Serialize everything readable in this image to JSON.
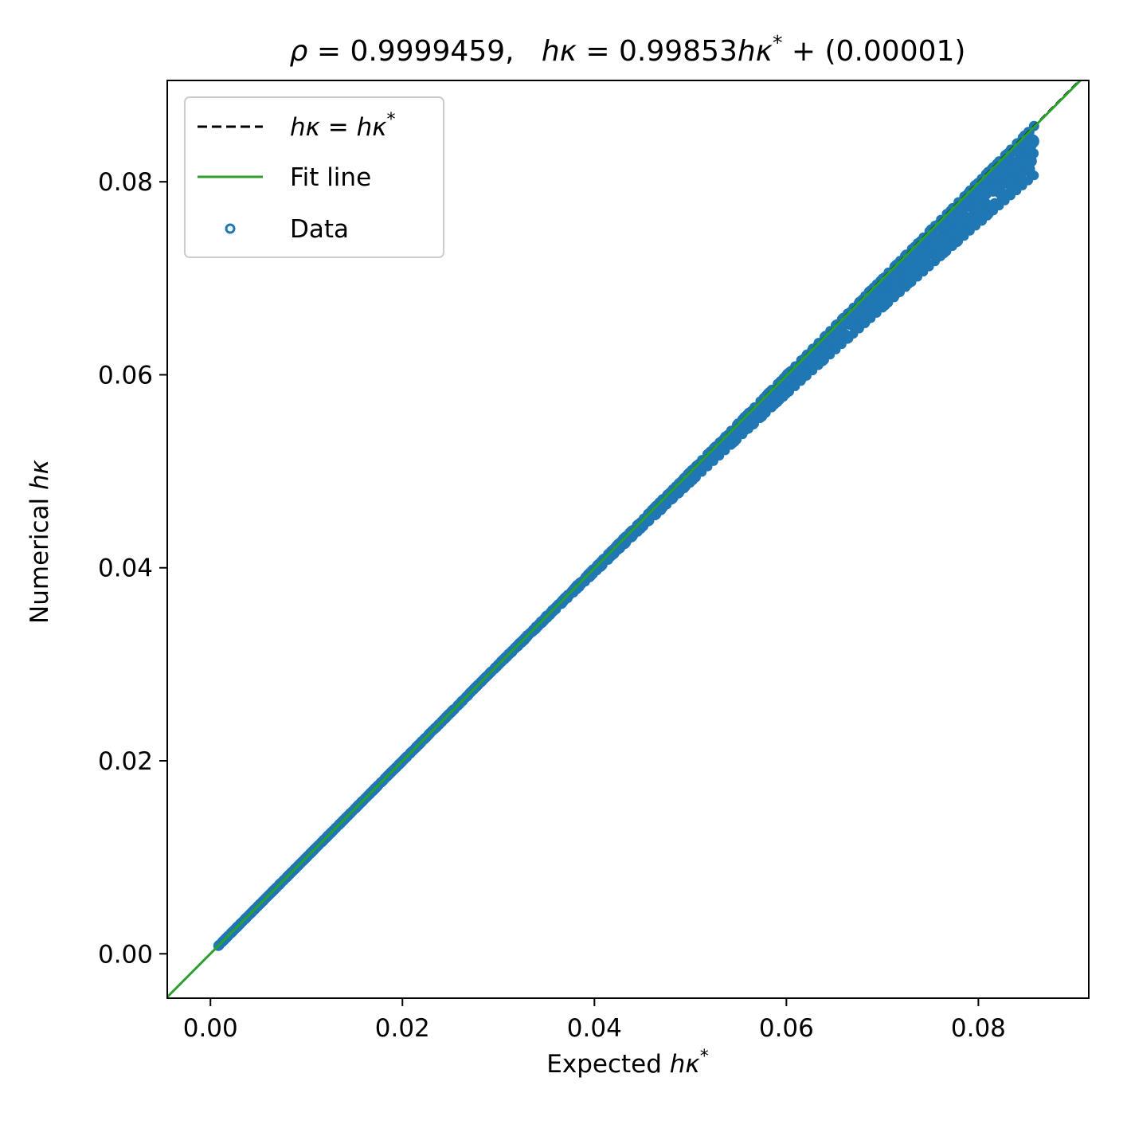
{
  "chart_data": {
    "type": "scatter",
    "title": {
      "rho_symbol": "ρ",
      "rho_text": " = 0.9999459,   ",
      "hk_symbol": "hκ",
      "eq_text": " = 0.99853",
      "hk_star_symbol": "hκ",
      "star": "*",
      "tail_text": " + (0.00001)"
    },
    "xlabel": {
      "text": "Expected ",
      "symbol": "hκ",
      "star": "*"
    },
    "ylabel": {
      "text": "Numerical ",
      "symbol": "hκ"
    },
    "xlim": [
      -0.0045,
      0.0915
    ],
    "ylim": [
      -0.0046,
      0.0905
    ],
    "xticks": [
      0.0,
      0.02,
      0.04,
      0.06,
      0.08
    ],
    "yticks": [
      0.0,
      0.02,
      0.04,
      0.06,
      0.08
    ],
    "xtick_labels": [
      "0.00",
      "0.02",
      "0.04",
      "0.06",
      "0.08"
    ],
    "ytick_labels": [
      "0.00",
      "0.02",
      "0.04",
      "0.06",
      "0.08"
    ],
    "legend_position": "top-left",
    "legend": {
      "identity": {
        "lhs": "hκ",
        "eq": " = ",
        "rhs": "hκ",
        "star": "*"
      },
      "fit": "Fit line",
      "data": "Data"
    },
    "identity_line": {
      "slope": 1.0,
      "intercept": 0.0,
      "color": "#000000",
      "style": "dashed"
    },
    "fit_line": {
      "slope": 0.99853,
      "intercept": 1e-05,
      "color": "#2ca02c"
    },
    "scatter_color": "#1f77b4",
    "scatter": {
      "x_min": 0.0008,
      "x_max": 0.0858,
      "x_fan_start": 0.027,
      "lower_bound_slope": 0.94,
      "upper_bound_slope": 1.0,
      "last_point": [
        0.0856,
        0.0842
      ],
      "x_values": [
        0.001,
        0.005,
        0.01,
        0.02,
        0.03,
        0.04,
        0.05,
        0.06,
        0.07,
        0.08,
        0.0856
      ],
      "y_upper": [
        0.001,
        0.005,
        0.01,
        0.02,
        0.03,
        0.04,
        0.05,
        0.06,
        0.07,
        0.0805,
        0.0845
      ],
      "y_lower": [
        0.001,
        0.0049,
        0.0097,
        0.0196,
        0.0292,
        0.0385,
        0.0478,
        0.0568,
        0.0658,
        0.0755,
        0.0805
      ]
    }
  }
}
